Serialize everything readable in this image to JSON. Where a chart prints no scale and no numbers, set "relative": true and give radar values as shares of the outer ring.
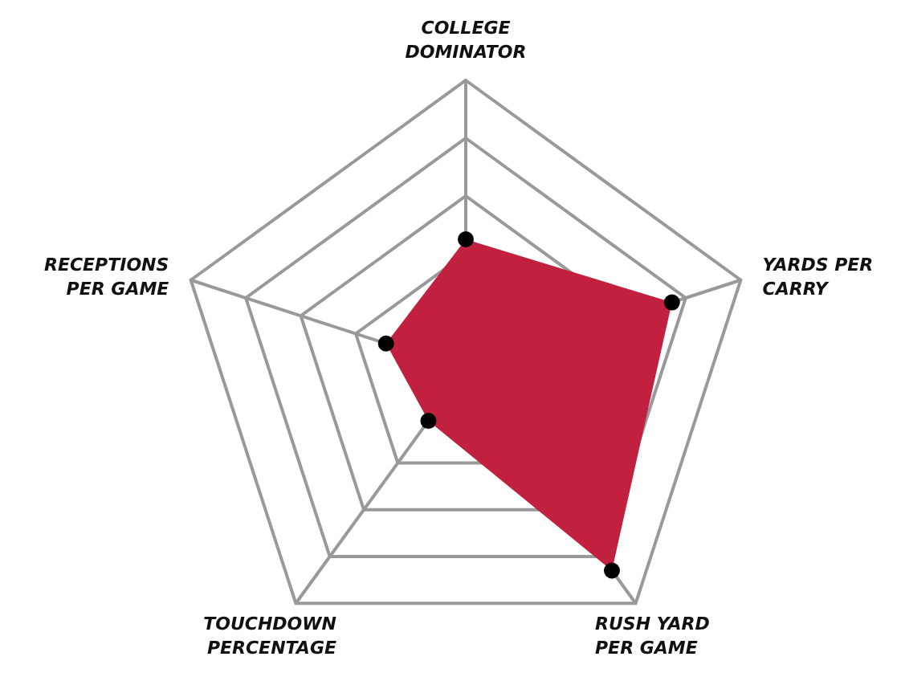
{
  "chart_data": {
    "type": "radar",
    "relative": true,
    "grid": true,
    "marker": "circle",
    "legend": false,
    "categories": [
      "COLLEGE DOMINATOR",
      "YARDS PER CARRY",
      "RUSH YARD PER GAME",
      "TOUCHDOWN PERCENTAGE",
      "RECEPTIONS PER GAME"
    ],
    "series": [
      {
        "color": "#c1213f",
        "values": [
          0.45,
          0.75,
          0.86,
          0.22,
          0.29
        ]
      }
    ]
  }
}
